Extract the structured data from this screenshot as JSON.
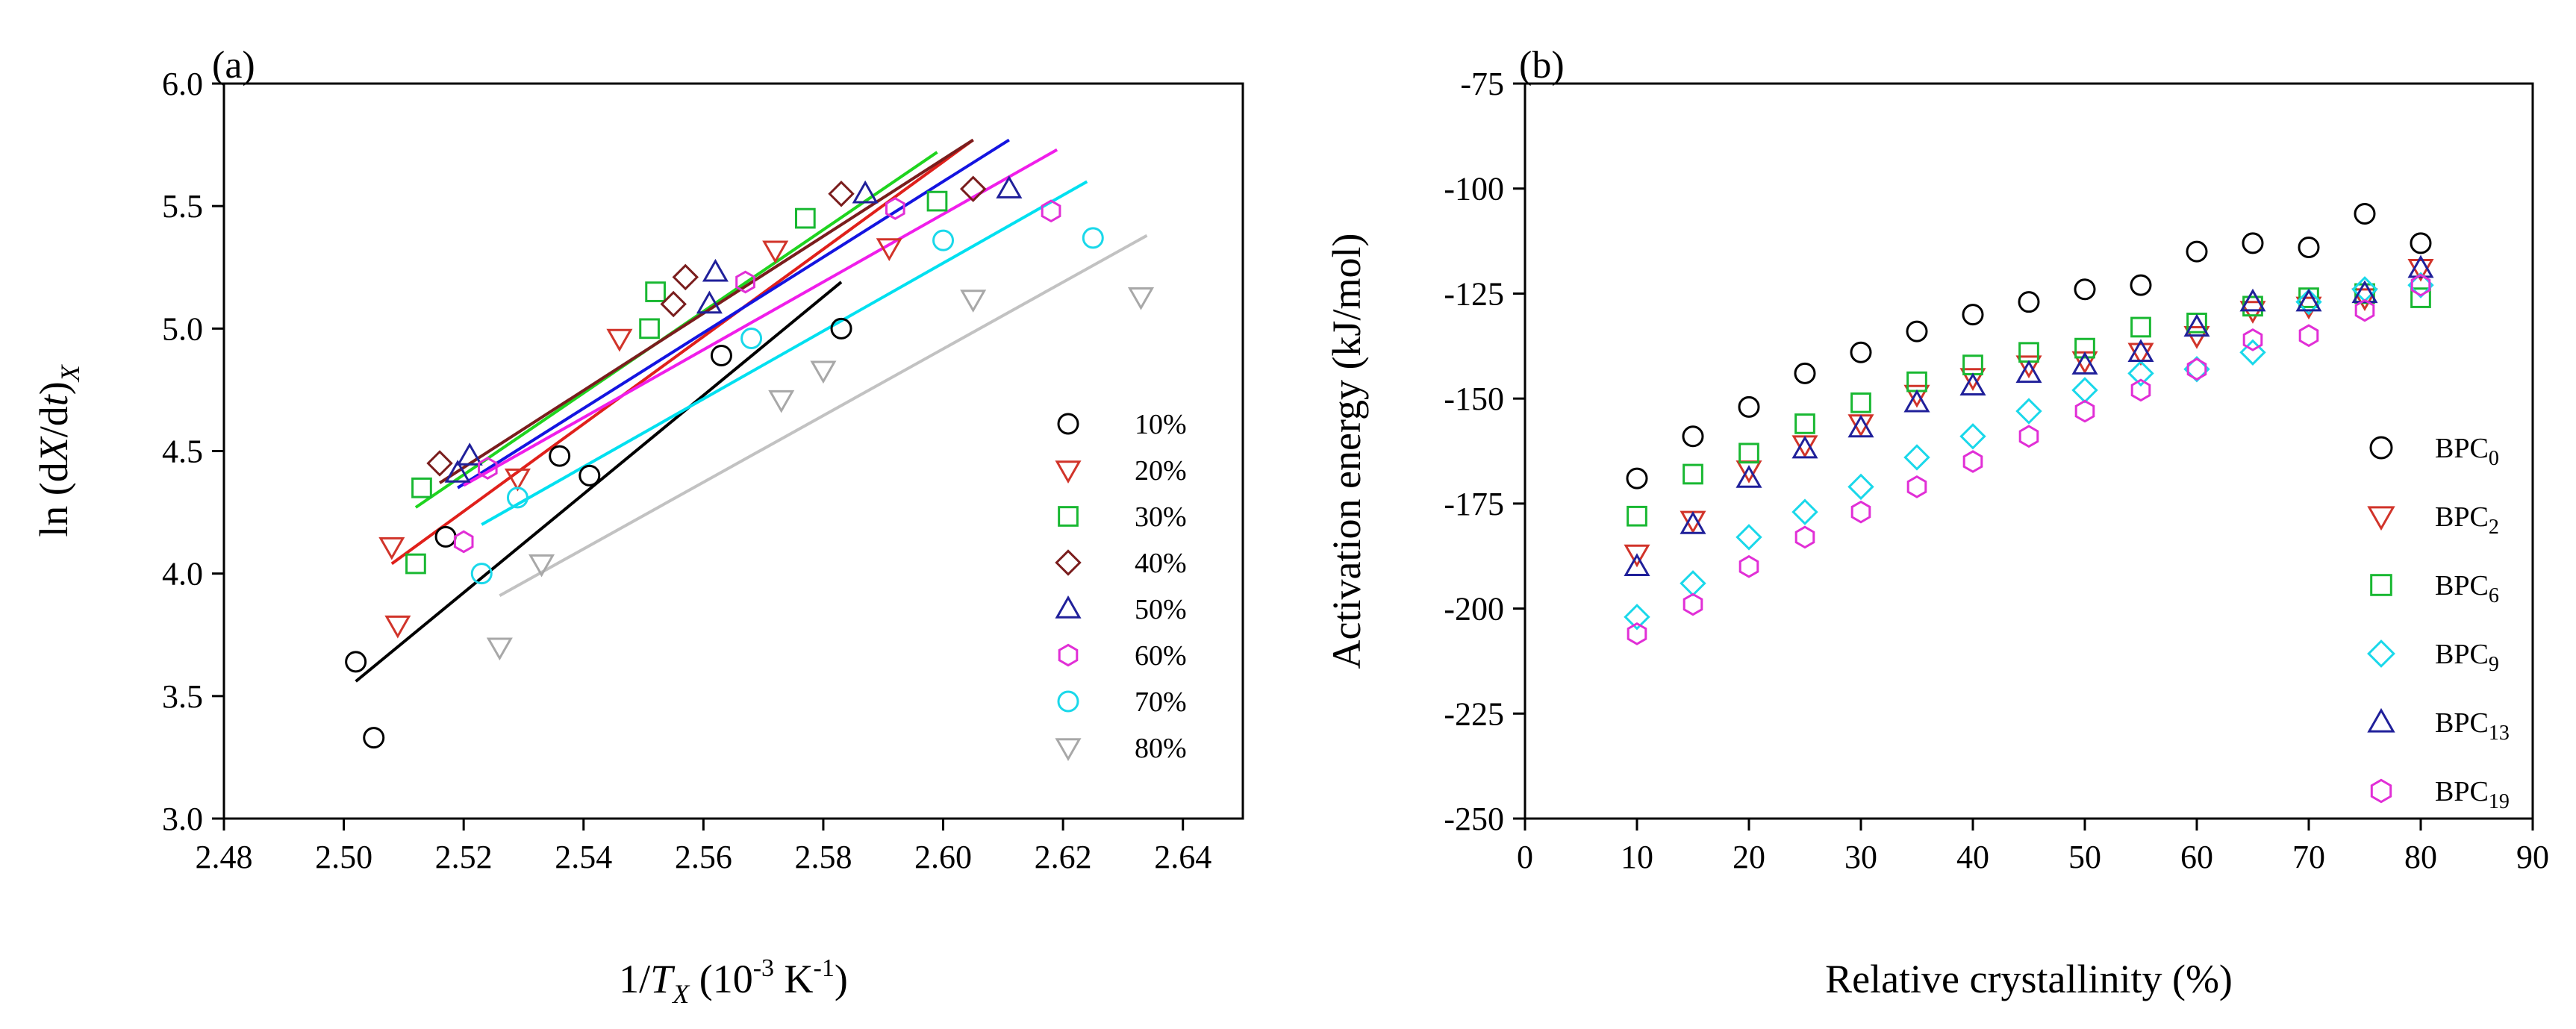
{
  "chart_data": [
    {
      "type": "scatter",
      "panel_label": "(a)",
      "xlabel_parts": {
        "pre": "1/",
        "italic": "T",
        "sub": "X",
        "post_open": " (10",
        "sup": "-3",
        "post_close": " K",
        "sup2": "-1",
        "close": ")"
      },
      "ylabel_parts": {
        "pre": "ln (d",
        "italic1": "X",
        "mid": "/d",
        "italic2": "t",
        "close": ")",
        "sub": "X"
      },
      "xlim": [
        2.48,
        2.65
      ],
      "ylim": [
        3.0,
        6.0
      ],
      "xticks": [
        "2.48",
        "2.50",
        "2.52",
        "2.54",
        "2.56",
        "2.58",
        "2.60",
        "2.62",
        "2.64"
      ],
      "yticks": [
        "3.0",
        "3.5",
        "4.0",
        "4.5",
        "5.0",
        "5.5",
        "6.0"
      ],
      "grid": false,
      "legend_position": "right",
      "series": [
        {
          "name": "10%",
          "marker": "circle",
          "color": "#000000",
          "line_color": "#000000",
          "points": [
            [
              2.502,
              3.64
            ],
            [
              2.505,
              3.33
            ],
            [
              2.517,
              4.15
            ],
            [
              2.536,
              4.48
            ],
            [
              2.541,
              4.4
            ],
            [
              2.563,
              4.89
            ],
            [
              2.583,
              5.0
            ]
          ],
          "fit": [
            [
              2.502,
              3.56
            ],
            [
              2.583,
              5.19
            ]
          ]
        },
        {
          "name": "20%",
          "marker": "triangle-down",
          "color": "#d1342a",
          "line_color": "#e0201b",
          "points": [
            [
              2.508,
              4.11
            ],
            [
              2.509,
              3.79
            ],
            [
              2.529,
              4.39
            ],
            [
              2.546,
              4.96
            ],
            [
              2.572,
              5.32
            ],
            [
              2.591,
              5.33
            ]
          ],
          "fit": [
            [
              2.508,
              4.04
            ],
            [
              2.605,
              5.77
            ]
          ]
        },
        {
          "name": "30%",
          "marker": "square",
          "color": "#19b832",
          "line_color": "#1fd41f",
          "points": [
            [
              2.512,
              4.04
            ],
            [
              2.513,
              4.35
            ],
            [
              2.551,
              5.0
            ],
            [
              2.552,
              5.15
            ],
            [
              2.577,
              5.45
            ],
            [
              2.599,
              5.52
            ]
          ],
          "fit": [
            [
              2.512,
              4.27
            ],
            [
              2.599,
              5.72
            ]
          ]
        },
        {
          "name": "40%",
          "marker": "diamond",
          "color": "#7a1d1d",
          "line_color": "#7a1d1d",
          "points": [
            [
              2.516,
              4.45
            ],
            [
              2.555,
              5.1
            ],
            [
              2.557,
              5.21
            ],
            [
              2.583,
              5.55
            ],
            [
              2.605,
              5.57
            ]
          ],
          "fit": [
            [
              2.516,
              4.37
            ],
            [
              2.605,
              5.77
            ]
          ]
        },
        {
          "name": "50%",
          "marker": "triangle-up",
          "color": "#20209a",
          "line_color": "#1414e0",
          "points": [
            [
              2.519,
              4.41
            ],
            [
              2.521,
              4.48
            ],
            [
              2.561,
              5.1
            ],
            [
              2.562,
              5.23
            ],
            [
              2.587,
              5.55
            ],
            [
              2.611,
              5.57
            ]
          ],
          "fit": [
            [
              2.519,
              4.35
            ],
            [
              2.611,
              5.77
            ]
          ]
        },
        {
          "name": "60%",
          "marker": "hexagon",
          "color": "#e12fd6",
          "line_color": "#f01eea",
          "points": [
            [
              2.52,
              4.13
            ],
            [
              2.524,
              4.43
            ],
            [
              2.567,
              5.19
            ],
            [
              2.592,
              5.49
            ],
            [
              2.618,
              5.48
            ]
          ],
          "fit": [
            [
              2.52,
              4.36
            ],
            [
              2.619,
              5.73
            ]
          ]
        },
        {
          "name": "70%",
          "marker": "circle",
          "color": "#1ad8ea",
          "line_color": "#00e0f0",
          "points": [
            [
              2.523,
              4.0
            ],
            [
              2.529,
              4.31
            ],
            [
              2.568,
              4.96
            ],
            [
              2.6,
              5.36
            ],
            [
              2.625,
              5.37
            ]
          ],
          "fit": [
            [
              2.523,
              4.2
            ],
            [
              2.624,
              5.6
            ]
          ]
        },
        {
          "name": "80%",
          "marker": "triangle-down",
          "color": "#a8a8a8",
          "line_color": "#c2c2c2",
          "points": [
            [
              2.526,
              3.7
            ],
            [
              2.533,
              4.04
            ],
            [
              2.573,
              4.71
            ],
            [
              2.58,
              4.83
            ],
            [
              2.605,
              5.12
            ],
            [
              2.633,
              5.13
            ]
          ],
          "fit": [
            [
              2.526,
              3.91
            ],
            [
              2.634,
              5.38
            ]
          ]
        }
      ]
    },
    {
      "type": "scatter",
      "panel_label": "(b)",
      "xlabel": "Relative crystallinity (%)",
      "ylabel": "Activation energy (kJ/mol)",
      "xlim": [
        0,
        90
      ],
      "ylim": [
        -250,
        -75
      ],
      "xticks": [
        "0",
        "10",
        "20",
        "30",
        "40",
        "50",
        "60",
        "70",
        "80",
        "90"
      ],
      "yticks": [
        "-75",
        "-100",
        "-125",
        "-150",
        "-175",
        "-200",
        "-225",
        "-250"
      ],
      "grid": false,
      "legend_position": "right",
      "x": [
        10,
        15,
        20,
        25,
        30,
        35,
        40,
        45,
        50,
        55,
        60,
        65,
        70,
        75,
        80
      ],
      "series": [
        {
          "name": "BPC0",
          "base": "BPC",
          "sub": "0",
          "marker": "circle",
          "color": "#000000",
          "values": [
            -169,
            -159,
            -152,
            -144,
            -139,
            -134,
            -130,
            -127,
            -124,
            -123,
            -115,
            -113,
            -114,
            -106,
            -113
          ]
        },
        {
          "name": "BPC2",
          "base": "BPC",
          "sub": "2",
          "marker": "triangle-down",
          "color": "#d1342a",
          "values": [
            -187,
            -179,
            -167,
            -161,
            -156,
            -149,
            -145,
            -142,
            -141,
            -139,
            -135,
            -129,
            -128,
            -126,
            -119
          ]
        },
        {
          "name": "BPC6",
          "base": "BPC",
          "sub": "6",
          "marker": "square",
          "color": "#19b832",
          "values": [
            -178,
            -168,
            -163,
            -156,
            -151,
            -146,
            -142,
            -139,
            -138,
            -133,
            -132,
            -128,
            -126,
            -125,
            -126
          ]
        },
        {
          "name": "BPC9",
          "base": "BPC",
          "sub": "9",
          "marker": "diamond",
          "color": "#1ad8ea",
          "values": [
            -202,
            -194,
            -183,
            -177,
            -171,
            -164,
            -159,
            -153,
            -148,
            -144,
            -143,
            -139,
            -127,
            -124,
            -123
          ]
        },
        {
          "name": "BPC13",
          "base": "BPC",
          "sub": "13",
          "marker": "triangle-up",
          "color": "#20209a",
          "values": [
            -190,
            -180,
            -169,
            -162,
            -157,
            -151,
            -147,
            -144,
            -142,
            -139,
            -133,
            -127,
            -127,
            -125,
            -119
          ]
        },
        {
          "name": "BPC19",
          "base": "BPC",
          "sub": "19",
          "marker": "hexagon",
          "color": "#e12fd6",
          "values": [
            -206,
            -199,
            -190,
            -183,
            -177,
            -171,
            -165,
            -159,
            -153,
            -148,
            -143,
            -136,
            -135,
            -129,
            -123
          ]
        }
      ]
    }
  ]
}
